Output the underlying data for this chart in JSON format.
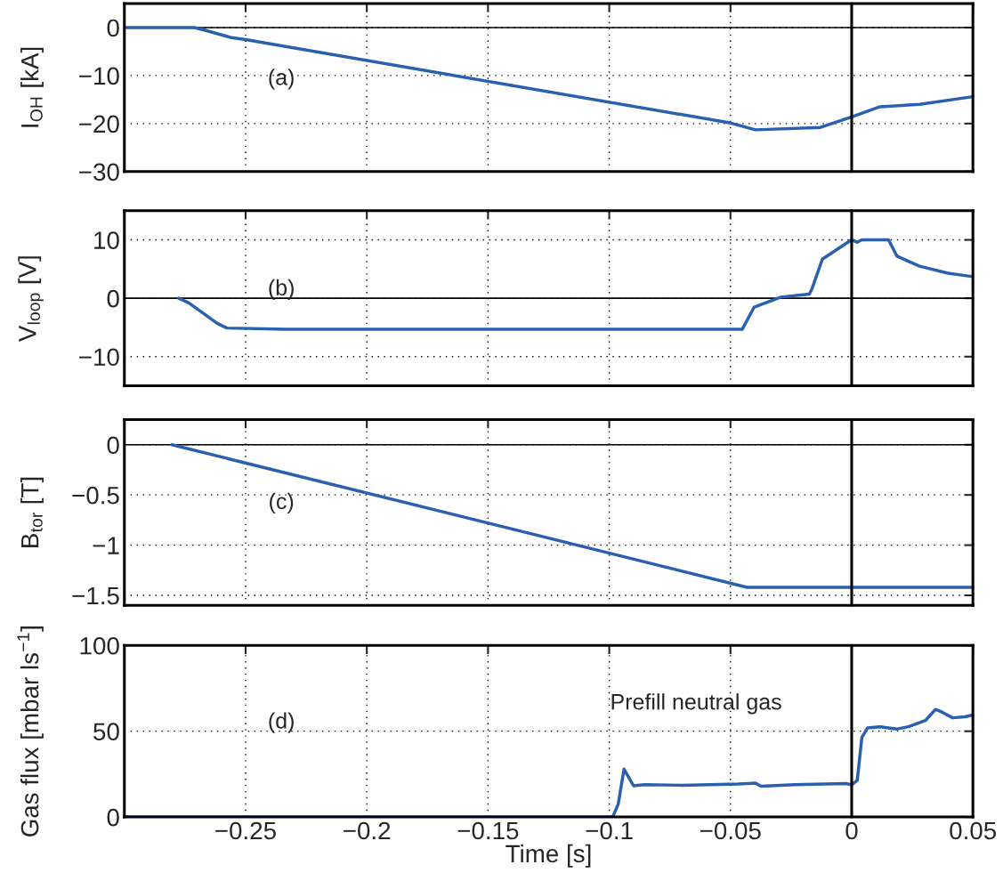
{
  "chart_data": [
    {
      "type": "line",
      "ylabel": "I$_{OH}$ [kA]",
      "annotations": [
        "(a)"
      ],
      "xlim": [
        -0.3,
        0.05
      ],
      "xticks": [
        -0.25,
        -0.2,
        -0.15,
        -0.1,
        -0.05,
        0,
        0.05
      ],
      "ylim": [
        -30,
        5
      ],
      "yticks": [
        {
          "value": -30,
          "label": "−30"
        },
        {
          "value": -20,
          "label": "−20"
        },
        {
          "value": -10,
          "label": "−10"
        },
        0
      ],
      "grid": true,
      "tick_labels": "y",
      "line_style": "solid",
      "ref_lines": [
        {
          "axis": "y",
          "value": 0,
          "color": "#000000"
        },
        {
          "axis": "x",
          "value": 0,
          "color": "#000000"
        }
      ],
      "series": [
        {
          "color": "#2b5fb0",
          "x": [
            -0.3,
            -0.271,
            -0.2664,
            -0.2558,
            -0.25,
            -0.0498,
            -0.0397,
            -0.0129,
            0,
            0.0117,
            0.028,
            0.05
          ],
          "values": [
            0,
            0,
            -0.6,
            -2.1,
            -2.5,
            -19.9,
            -21.3,
            -20.8,
            -18.6,
            -16.5,
            -16.0,
            -14.4
          ]
        }
      ]
    },
    {
      "type": "line",
      "ylabel": "V$_{loop}$ [V]",
      "annotations": [
        "(b)"
      ],
      "xlim": [
        -0.3,
        0.05
      ],
      "xticks": [
        -0.25,
        -0.2,
        -0.15,
        -0.1,
        -0.05,
        0,
        0.05
      ],
      "ylim": [
        -15,
        15
      ],
      "yticks": [
        {
          "value": -10,
          "label": "−10"
        },
        0,
        10
      ],
      "grid": true,
      "tick_labels": "y",
      "line_style": "solid",
      "ref_lines": [
        {
          "axis": "y",
          "value": 0,
          "color": "#000000"
        },
        {
          "axis": "x",
          "value": 0,
          "color": "#000000"
        }
      ],
      "series": [
        {
          "color": "#2b5fb0",
          "x": [
            -0.2776,
            -0.2734,
            -0.2617,
            -0.2577,
            -0.2336,
            -0.0451,
            -0.0402,
            -0.0292,
            -0.0175,
            -0.0164,
            -0.0121,
            -0.0023,
            0,
            0.0023,
            0.0042,
            0.0152,
            0.0187,
            0.028,
            0.0397,
            0.05
          ],
          "values": [
            0,
            -0.8,
            -4.3,
            -5.1,
            -5.3,
            -5.3,
            -1.5,
            0.2,
            0.7,
            1.6,
            6.7,
            9.4,
            10,
            9.6,
            10,
            10,
            7.2,
            5.5,
            4.3,
            3.7
          ]
        }
      ]
    },
    {
      "type": "line",
      "ylabel": "B$_{tor}$ [T]",
      "annotations": [
        "(c)"
      ],
      "xlim": [
        -0.3,
        0.05
      ],
      "xticks": [
        -0.25,
        -0.2,
        -0.15,
        -0.1,
        -0.05,
        0,
        0.05
      ],
      "ylim": [
        -1.6,
        0.25
      ],
      "yticks": [
        {
          "value": -1.5,
          "label": "−1.5"
        },
        {
          "value": -1,
          "label": "−1"
        },
        {
          "value": -0.5,
          "label": "−0.5"
        },
        0
      ],
      "grid": true,
      "tick_labels": "y",
      "line_style": "solid",
      "ref_lines": [
        {
          "axis": "y",
          "value": 0,
          "color": "#000000"
        },
        {
          "axis": "x",
          "value": 0,
          "color": "#000000"
        }
      ],
      "series": [
        {
          "color": "#2b5fb0",
          "x": [
            -0.2804,
            -0.0432,
            0.05
          ],
          "values": [
            0,
            -1.42,
            -1.42
          ]
        }
      ]
    },
    {
      "type": "line",
      "xlabel": "Time [s]",
      "ylabel": "Gas flux [mbar ls$^{−1}$]",
      "annotations": [
        "(d)",
        "Prefill neutral gas"
      ],
      "xlim": [
        -0.3,
        0.05
      ],
      "xticks": [
        {
          "value": -0.25,
          "label": "−0.25"
        },
        {
          "value": -0.2,
          "label": "−0.2"
        },
        {
          "value": -0.15,
          "label": "−0.15"
        },
        {
          "value": -0.1,
          "label": "−0.1"
        },
        {
          "value": -0.05,
          "label": "−0.05"
        },
        0,
        0.05
      ],
      "ylim": [
        0,
        100
      ],
      "yticks": [
        0,
        50,
        100
      ],
      "grid": true,
      "line_style": "solid",
      "ref_lines": [
        {
          "axis": "x",
          "value": 0,
          "color": "#000000"
        }
      ],
      "series": [
        {
          "color": "#2b5fb0",
          "x": [
            -0.3,
            -0.0986,
            -0.0963,
            -0.0939,
            -0.09,
            -0.0853,
            -0.0701,
            -0.0467,
            -0.0397,
            -0.0374,
            -0.0234,
            -0.0023,
            0,
            0.0023,
            0.0042,
            0.0065,
            0.0117,
            0.0187,
            0.0234,
            0.0304,
            0.0346,
            0.0374,
            0.0416,
            0.0467,
            0.05
          ],
          "values": [
            0,
            0,
            7.5,
            27.9,
            18.2,
            18.8,
            18.5,
            19.2,
            19.8,
            17.9,
            18.8,
            19.5,
            18.8,
            21.4,
            46.4,
            51.9,
            52.6,
            51.3,
            52.6,
            56.2,
            62.7,
            61,
            57.8,
            58.4,
            59.4
          ]
        }
      ]
    }
  ]
}
